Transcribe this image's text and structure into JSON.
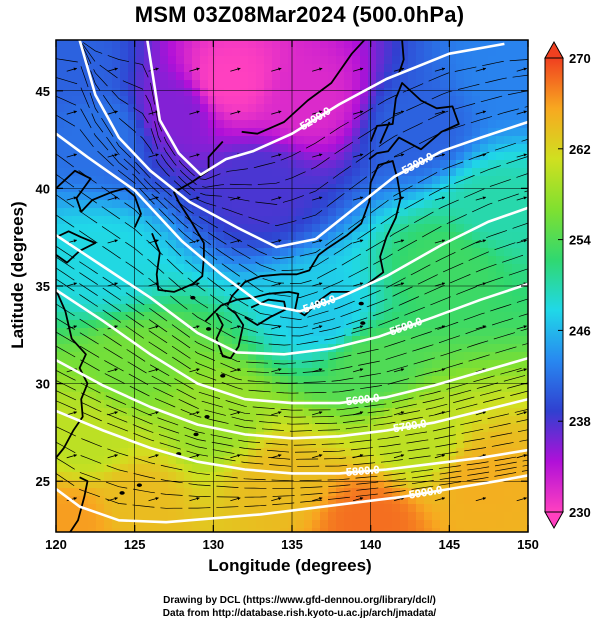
{
  "title": "MSM 03Z08Mar2024 (500.0hPa)",
  "xlabel": "Longitude (degrees)",
  "ylabel": "Latitude  (degrees)",
  "credits": [
    "Drawing by DCL (https://www.gfd-dennou.org/library/dcl/)",
    "Data from http://database.rish.kyoto-u.ac.jp/arch/jmadata/"
  ],
  "chart_data": {
    "type": "heatmap",
    "title": "MSM 03Z08Mar2024 (500.0hPa)",
    "xlabel": "Longitude (degrees)",
    "ylabel": "Latitude  (degrees)",
    "xlim": [
      120,
      150
    ],
    "ylim": [
      22.4,
      47.6
    ],
    "xticks": [
      "120",
      "125",
      "130",
      "135",
      "140",
      "145",
      "150"
    ],
    "yticks": [
      "25",
      "30",
      "35",
      "40",
      "45"
    ],
    "grid": true,
    "colorbar": {
      "min": 230,
      "max": 270,
      "ticks": [
        "230",
        "238",
        "246",
        "254",
        "262",
        "270"
      ],
      "colors": [
        "#ff40c0",
        "#b010d8",
        "#3040d0",
        "#2888f0",
        "#20d8e8",
        "#30d870",
        "#80e030",
        "#d0e020",
        "#f8a820",
        "#f04020"
      ]
    },
    "contours": [
      {
        "label": "5200.0",
        "points": [
          [
            125.8,
            47.6
          ],
          [
            126.6,
            43.5
          ],
          [
            127.8,
            41.8
          ],
          [
            129.2,
            40.7
          ],
          [
            130.8,
            41.5
          ],
          [
            132.5,
            41.9
          ],
          [
            135.0,
            42.8
          ],
          [
            138.0,
            44.3
          ],
          [
            141.0,
            45.6
          ],
          [
            145.0,
            46.9
          ],
          [
            148.5,
            47.4
          ]
        ]
      },
      {
        "label": "5300.0",
        "points": [
          [
            121.5,
            47.6
          ],
          [
            122.5,
            44.8
          ],
          [
            124.0,
            42.6
          ],
          [
            126.0,
            40.9
          ],
          [
            128.5,
            39.3
          ],
          [
            131.5,
            38.0
          ],
          [
            134.0,
            37.0
          ],
          [
            136.5,
            37.4
          ],
          [
            139.0,
            39.0
          ],
          [
            141.5,
            40.6
          ],
          [
            144.5,
            41.9
          ],
          [
            147.0,
            42.6
          ],
          [
            150.0,
            43.4
          ]
        ]
      },
      {
        "label": "5400.0",
        "points": [
          [
            120.0,
            42.8
          ],
          [
            122.0,
            41.6
          ],
          [
            125.0,
            39.9
          ],
          [
            128.0,
            37.3
          ],
          [
            130.5,
            35.6
          ],
          [
            133.0,
            34.1
          ],
          [
            135.5,
            33.7
          ],
          [
            138.0,
            34.4
          ],
          [
            141.0,
            35.5
          ],
          [
            144.5,
            37.1
          ],
          [
            147.5,
            38.3
          ],
          [
            150.0,
            39.0
          ]
        ]
      },
      {
        "label": "5500.0",
        "points": [
          [
            120.0,
            37.6
          ],
          [
            123.0,
            36.0
          ],
          [
            126.0,
            34.4
          ],
          [
            129.0,
            32.6
          ],
          [
            131.5,
            31.6
          ],
          [
            134.5,
            31.5
          ],
          [
            137.5,
            31.8
          ],
          [
            140.5,
            32.4
          ],
          [
            144.0,
            33.4
          ],
          [
            147.0,
            34.3
          ],
          [
            150.0,
            35.1
          ]
        ]
      },
      {
        "label": "5600.0",
        "points": [
          [
            120.0,
            34.8
          ],
          [
            123.0,
            33.2
          ],
          [
            126.0,
            31.5
          ],
          [
            129.0,
            30.0
          ],
          [
            132.0,
            29.2
          ],
          [
            135.0,
            29.0
          ],
          [
            138.0,
            29.0
          ],
          [
            141.0,
            29.3
          ],
          [
            144.0,
            29.9
          ],
          [
            147.0,
            30.6
          ],
          [
            150.0,
            31.3
          ]
        ]
      },
      {
        "label": "5700.0",
        "points": [
          [
            120.0,
            31.2
          ],
          [
            123.0,
            29.9
          ],
          [
            126.0,
            28.8
          ],
          [
            129.0,
            27.9
          ],
          [
            132.0,
            27.4
          ],
          [
            135.0,
            27.2
          ],
          [
            138.0,
            27.3
          ],
          [
            141.0,
            27.6
          ],
          [
            144.0,
            28.0
          ],
          [
            147.0,
            28.6
          ],
          [
            150.0,
            29.2
          ]
        ]
      },
      {
        "label": "5800.0",
        "points": [
          [
            120.0,
            28.6
          ],
          [
            123.0,
            27.6
          ],
          [
            126.0,
            26.7
          ],
          [
            129.0,
            26.0
          ],
          [
            132.0,
            25.6
          ],
          [
            135.0,
            25.4
          ],
          [
            138.0,
            25.4
          ],
          [
            141.0,
            25.6
          ],
          [
            144.0,
            25.9
          ],
          [
            147.0,
            26.2
          ],
          [
            150.0,
            26.6
          ]
        ]
      },
      {
        "label": "5900.0",
        "points": [
          [
            120.0,
            24.6
          ],
          [
            121.5,
            23.7
          ],
          [
            124.0,
            23.0
          ],
          [
            127.0,
            22.9
          ],
          [
            130.0,
            23.1
          ],
          [
            133.0,
            23.3
          ],
          [
            136.0,
            23.6
          ],
          [
            139.0,
            23.9
          ],
          [
            142.0,
            24.2
          ],
          [
            145.0,
            24.6
          ],
          [
            148.0,
            25.0
          ],
          [
            150.0,
            25.3
          ]
        ]
      }
    ],
    "temperature_anchors": [
      {
        "lon": 131,
        "lat": 45.5,
        "value": 230
      },
      {
        "lon": 136,
        "lat": 44.5,
        "value": 232
      },
      {
        "lon": 127.5,
        "lat": 44,
        "value": 236
      },
      {
        "lon": 133,
        "lat": 40,
        "value": 238
      },
      {
        "lon": 143,
        "lat": 43,
        "value": 241
      },
      {
        "lon": 123,
        "lat": 43,
        "value": 242
      },
      {
        "lon": 121,
        "lat": 46,
        "value": 241
      },
      {
        "lon": 149,
        "lat": 46,
        "value": 243
      },
      {
        "lon": 137,
        "lat": 33.5,
        "value": 247
      },
      {
        "lon": 148,
        "lat": 39,
        "value": 250
      },
      {
        "lon": 123,
        "lat": 36,
        "value": 248
      },
      {
        "lon": 145,
        "lat": 36,
        "value": 253
      },
      {
        "lon": 140,
        "lat": 31,
        "value": 254
      },
      {
        "lon": 125,
        "lat": 31,
        "value": 256
      },
      {
        "lon": 130,
        "lat": 28,
        "value": 258
      },
      {
        "lon": 143,
        "lat": 27,
        "value": 260
      },
      {
        "lon": 122,
        "lat": 27,
        "value": 260
      },
      {
        "lon": 134,
        "lat": 25,
        "value": 264
      },
      {
        "lon": 147,
        "lat": 25,
        "value": 265
      },
      {
        "lon": 125,
        "lat": 24,
        "value": 264
      },
      {
        "lon": 140,
        "lat": 23,
        "value": 268
      },
      {
        "lon": 121,
        "lat": 23,
        "value": 266
      }
    ]
  }
}
